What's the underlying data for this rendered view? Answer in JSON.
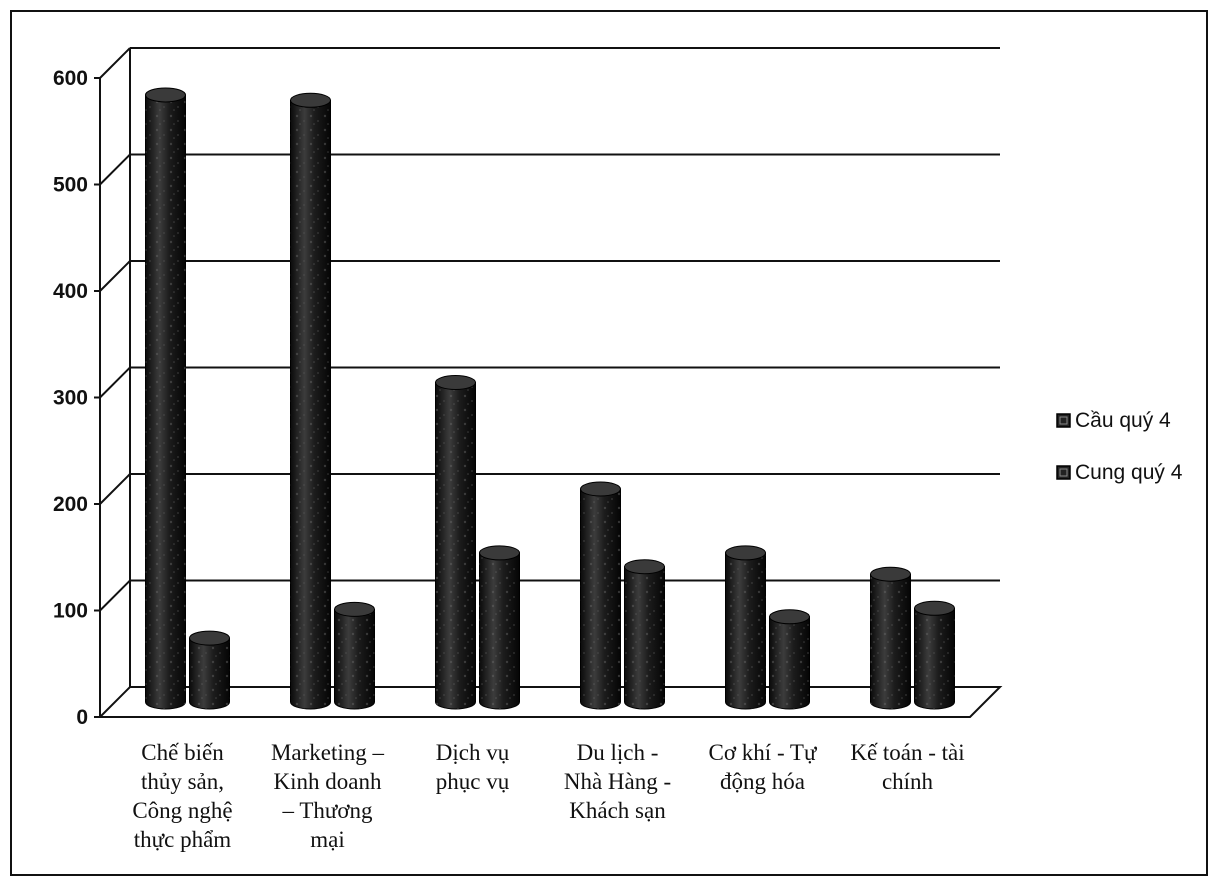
{
  "chart_data": {
    "type": "bar",
    "title": "",
    "xlabel": "",
    "ylabel": "",
    "ylim": [
      0,
      600
    ],
    "yticks": [
      0,
      100,
      200,
      300,
      400,
      500,
      600
    ],
    "grid": true,
    "legend_position": "right",
    "categories": [
      [
        "Chế biến",
        "thủy sản,",
        "Công nghệ",
        "thực phẩm"
      ],
      [
        "Marketing –",
        "Kinh doanh",
        "– Thương",
        "mại"
      ],
      [
        "Dịch vụ",
        "phục vụ"
      ],
      [
        "Du lịch -",
        "Nhà Hàng -",
        "Khách sạn"
      ],
      [
        "Cơ khí - Tự",
        "động hóa"
      ],
      [
        "Kế toán - tài",
        "chính"
      ]
    ],
    "series": [
      {
        "name": "Cầu quý 4",
        "values": [
          570,
          565,
          300,
          200,
          140,
          120
        ],
        "color": "#1a1a1a"
      },
      {
        "name": "Cung quý 4",
        "values": [
          60,
          87,
          140,
          127,
          80,
          88
        ],
        "color": "#2a2a2a"
      }
    ]
  }
}
